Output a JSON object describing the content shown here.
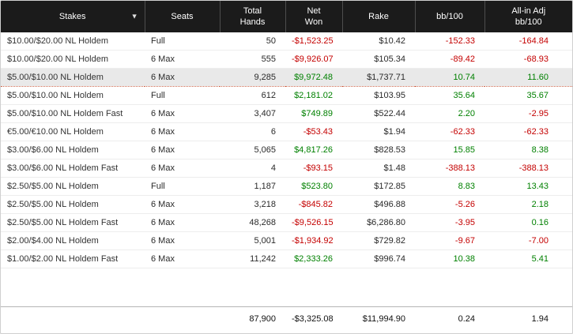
{
  "colors": {
    "negative": "#c40000",
    "positive": "#008000",
    "header_bg": "#1b1b1b",
    "selected_row_bg": "#e9e9e9",
    "selected_row_border": "#cf6a4f"
  },
  "icons": {
    "sort_descending": "▼"
  },
  "table": {
    "columns": [
      {
        "key": "stakes",
        "label": "Stakes",
        "has_sort_icon": true
      },
      {
        "key": "seats",
        "label": "Seats",
        "has_sort_icon": false
      },
      {
        "key": "total-hands",
        "label": "Total\nHands",
        "has_sort_icon": false
      },
      {
        "key": "net-won",
        "label": "Net\nWon",
        "has_sort_icon": false
      },
      {
        "key": "rake",
        "label": "Rake",
        "has_sort_icon": false
      },
      {
        "key": "bb-100",
        "label": "bb/100",
        "has_sort_icon": false
      },
      {
        "key": "all-in-adj-bb-100",
        "label": "All-in Adj\nbb/100",
        "has_sort_icon": false
      }
    ],
    "rows": [
      {
        "selected": false,
        "cells": [
          {
            "text": "$10.00/$20.00 NL Holdem"
          },
          {
            "text": "Full"
          },
          {
            "text": "50"
          },
          {
            "text": "-$1,523.25",
            "tone": "neg"
          },
          {
            "text": "$10.42"
          },
          {
            "text": "-152.33",
            "tone": "neg"
          },
          {
            "text": "-164.84",
            "tone": "neg"
          }
        ]
      },
      {
        "selected": false,
        "cells": [
          {
            "text": "$10.00/$20.00 NL Holdem"
          },
          {
            "text": "6 Max"
          },
          {
            "text": "555"
          },
          {
            "text": "-$9,926.07",
            "tone": "neg"
          },
          {
            "text": "$105.34"
          },
          {
            "text": "-89.42",
            "tone": "neg"
          },
          {
            "text": "-68.93",
            "tone": "neg"
          }
        ]
      },
      {
        "selected": true,
        "cells": [
          {
            "text": "$5.00/$10.00 NL Holdem"
          },
          {
            "text": "6 Max"
          },
          {
            "text": "9,285"
          },
          {
            "text": "$9,972.48",
            "tone": "pos"
          },
          {
            "text": "$1,737.71"
          },
          {
            "text": "10.74",
            "tone": "pos"
          },
          {
            "text": "11.60",
            "tone": "pos"
          }
        ]
      },
      {
        "selected": false,
        "cells": [
          {
            "text": "$5.00/$10.00 NL Holdem"
          },
          {
            "text": "Full"
          },
          {
            "text": "612"
          },
          {
            "text": "$2,181.02",
            "tone": "pos"
          },
          {
            "text": "$103.95"
          },
          {
            "text": "35.64",
            "tone": "pos"
          },
          {
            "text": "35.67",
            "tone": "pos"
          }
        ]
      },
      {
        "selected": false,
        "cells": [
          {
            "text": "$5.00/$10.00 NL Holdem Fast"
          },
          {
            "text": "6 Max"
          },
          {
            "text": "3,407"
          },
          {
            "text": "$749.89",
            "tone": "pos"
          },
          {
            "text": "$522.44"
          },
          {
            "text": "2.20",
            "tone": "pos"
          },
          {
            "text": "-2.95",
            "tone": "neg"
          }
        ]
      },
      {
        "selected": false,
        "cells": [
          {
            "text": "€5.00/€10.00 NL Holdem"
          },
          {
            "text": "6 Max"
          },
          {
            "text": "6"
          },
          {
            "text": "-$53.43",
            "tone": "neg"
          },
          {
            "text": "$1.94"
          },
          {
            "text": "-62.33",
            "tone": "neg"
          },
          {
            "text": "-62.33",
            "tone": "neg"
          }
        ]
      },
      {
        "selected": false,
        "cells": [
          {
            "text": "$3.00/$6.00 NL Holdem"
          },
          {
            "text": "6 Max"
          },
          {
            "text": "5,065"
          },
          {
            "text": "$4,817.26",
            "tone": "pos"
          },
          {
            "text": "$828.53"
          },
          {
            "text": "15.85",
            "tone": "pos"
          },
          {
            "text": "8.38",
            "tone": "pos"
          }
        ]
      },
      {
        "selected": false,
        "cells": [
          {
            "text": "$3.00/$6.00 NL Holdem Fast"
          },
          {
            "text": "6 Max"
          },
          {
            "text": "4"
          },
          {
            "text": "-$93.15",
            "tone": "neg"
          },
          {
            "text": "$1.48"
          },
          {
            "text": "-388.13",
            "tone": "neg"
          },
          {
            "text": "-388.13",
            "tone": "neg"
          }
        ]
      },
      {
        "selected": false,
        "cells": [
          {
            "text": "$2.50/$5.00 NL Holdem"
          },
          {
            "text": "Full"
          },
          {
            "text": "1,187"
          },
          {
            "text": "$523.80",
            "tone": "pos"
          },
          {
            "text": "$172.85"
          },
          {
            "text": "8.83",
            "tone": "pos"
          },
          {
            "text": "13.43",
            "tone": "pos"
          }
        ]
      },
      {
        "selected": false,
        "cells": [
          {
            "text": "$2.50/$5.00 NL Holdem"
          },
          {
            "text": "6 Max"
          },
          {
            "text": "3,218"
          },
          {
            "text": "-$845.82",
            "tone": "neg"
          },
          {
            "text": "$496.88"
          },
          {
            "text": "-5.26",
            "tone": "neg"
          },
          {
            "text": "2.18",
            "tone": "pos"
          }
        ]
      },
      {
        "selected": false,
        "cells": [
          {
            "text": "$2.50/$5.00 NL Holdem Fast"
          },
          {
            "text": "6 Max"
          },
          {
            "text": "48,268"
          },
          {
            "text": "-$9,526.15",
            "tone": "neg"
          },
          {
            "text": "$6,286.80"
          },
          {
            "text": "-3.95",
            "tone": "neg"
          },
          {
            "text": "0.16",
            "tone": "pos"
          }
        ]
      },
      {
        "selected": false,
        "cells": [
          {
            "text": "$2.00/$4.00 NL Holdem"
          },
          {
            "text": "6 Max"
          },
          {
            "text": "5,001"
          },
          {
            "text": "-$1,934.92",
            "tone": "neg"
          },
          {
            "text": "$729.82"
          },
          {
            "text": "-9.67",
            "tone": "neg"
          },
          {
            "text": "-7.00",
            "tone": "neg"
          }
        ]
      },
      {
        "selected": false,
        "cells": [
          {
            "text": "$1.00/$2.00 NL Holdem Fast"
          },
          {
            "text": "6 Max"
          },
          {
            "text": "11,242"
          },
          {
            "text": "$2,333.26",
            "tone": "pos"
          },
          {
            "text": "$996.74"
          },
          {
            "text": "10.38",
            "tone": "pos"
          },
          {
            "text": "5.41",
            "tone": "pos"
          }
        ]
      }
    ],
    "totals": {
      "cells": [
        {
          "text": ""
        },
        {
          "text": ""
        },
        {
          "text": "87,900"
        },
        {
          "text": "-$3,325.08"
        },
        {
          "text": "$11,994.90"
        },
        {
          "text": "0.24"
        },
        {
          "text": "1.94"
        }
      ]
    }
  }
}
